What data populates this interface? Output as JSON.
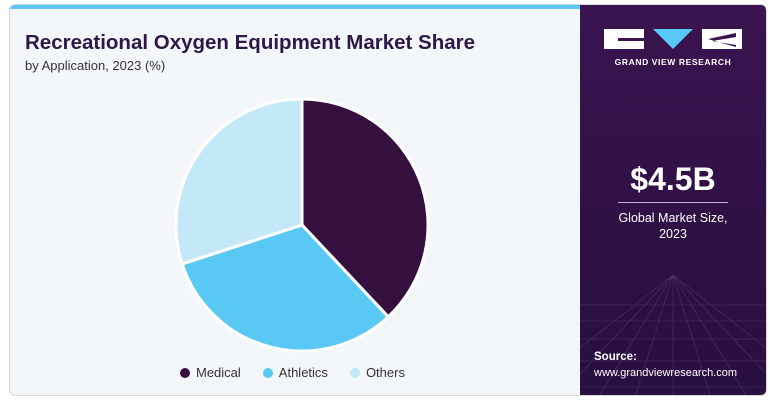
{
  "header": {
    "title": "Recreational Oxygen Equipment Market Share",
    "subtitle": "by Application, 2023 (%)"
  },
  "chart_data": {
    "type": "pie",
    "title": "Recreational Oxygen Equipment Market Share",
    "subtitle": "by Application, 2023 (%)",
    "categories": [
      "Medical",
      "Athletics",
      "Others"
    ],
    "values": [
      38,
      32,
      30
    ],
    "colors": [
      "#35103f",
      "#5ac8f5",
      "#c3e9f8"
    ],
    "legend_position": "bottom"
  },
  "sidebar": {
    "brand": "GRAND VIEW RESEARCH",
    "market_size": "$4.5B",
    "market_label_line1": "Global Market Size,",
    "market_label_line2": "2023",
    "source_label": "Source:",
    "source_url": "www.grandviewresearch.com",
    "background_color": "#2f1045"
  }
}
